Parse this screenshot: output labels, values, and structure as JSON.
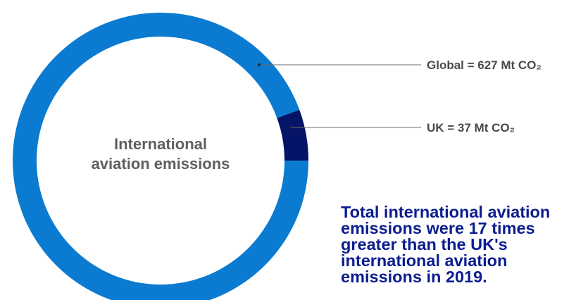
{
  "chart_data": {
    "type": "pie",
    "donut": true,
    "title": "",
    "center_label": [
      "International",
      "aviation emissions"
    ],
    "unit": "Mt CO₂",
    "slices": [
      {
        "label": "Global",
        "value": 627,
        "color": "#0a7bd0",
        "text": "Global = 627 Mt CO₂"
      },
      {
        "label": "UK",
        "value": 37,
        "color": "#051466",
        "text": "UK = 37 Mt CO₂"
      }
    ],
    "legend": "none",
    "annotation": "Total international aviation emissions were 17 times greater than the UK's international aviation emissions in 2019."
  }
}
